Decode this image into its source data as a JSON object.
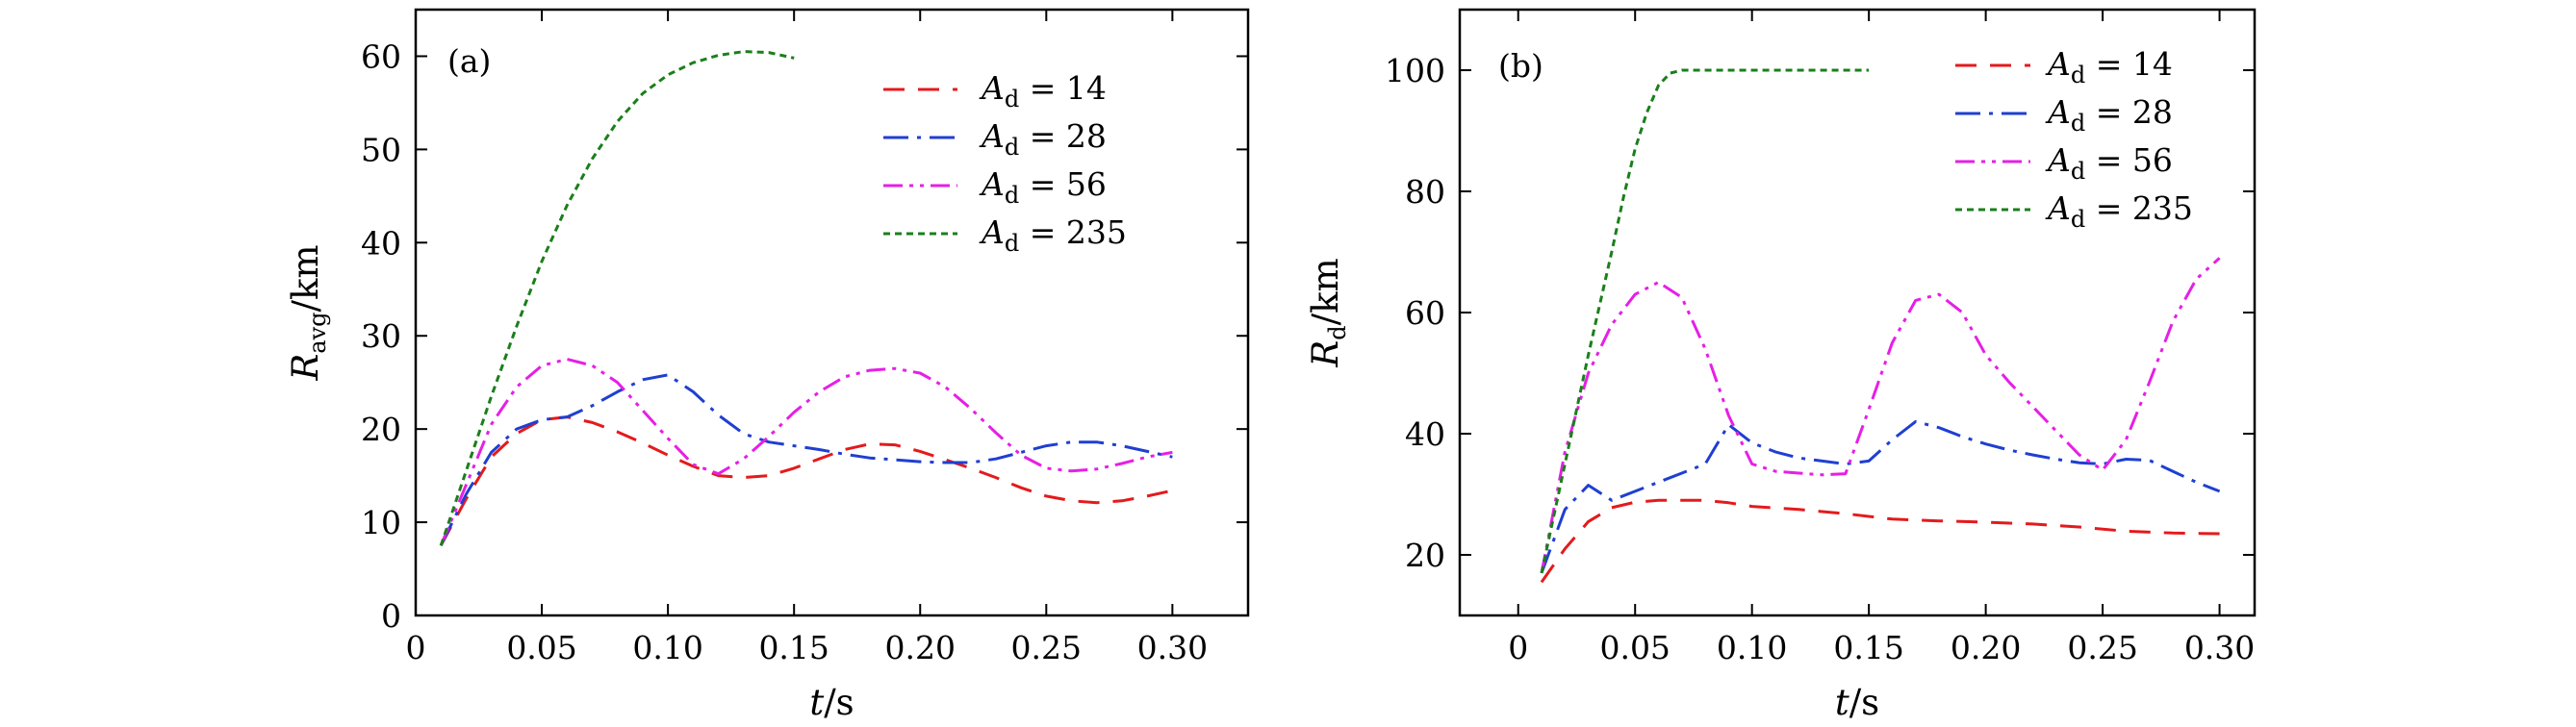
{
  "chart_data": [
    {
      "type": "line",
      "panel_label": "(a)",
      "xlabel": {
        "italic": "t",
        "rest": "/s"
      },
      "ylabel": {
        "main": "R",
        "sub": "avg",
        "rest": "/km"
      },
      "xlim": [
        0,
        0.33
      ],
      "ylim": [
        0,
        65
      ],
      "xticks": [
        0,
        0.05,
        0.1,
        0.15,
        0.2,
        0.25,
        0.3
      ],
      "xtick_labels": [
        "0",
        "0.05",
        "0.10",
        "0.15",
        "0.20",
        "0.25",
        "0.30"
      ],
      "yticks": [
        0,
        10,
        20,
        30,
        40,
        50,
        60
      ],
      "ytick_labels": [
        "0",
        "10",
        "20",
        "30",
        "40",
        "50",
        "60"
      ],
      "legend_position": "top-right",
      "series": [
        {
          "name": "14",
          "legend": {
            "main": "A",
            "sub": "d",
            "rest": " = 14"
          },
          "color": "#e41a1c",
          "dash": "22,14",
          "x": [
            0.01,
            0.02,
            0.03,
            0.04,
            0.05,
            0.06,
            0.07,
            0.08,
            0.09,
            0.1,
            0.11,
            0.12,
            0.13,
            0.14,
            0.15,
            0.16,
            0.17,
            0.18,
            0.19,
            0.2,
            0.21,
            0.22,
            0.23,
            0.24,
            0.25,
            0.26,
            0.27,
            0.28,
            0.29,
            0.3
          ],
          "y": [
            7.5,
            12.5,
            17,
            19.5,
            21,
            21.3,
            20.7,
            19.7,
            18.5,
            17.2,
            16,
            15,
            14.8,
            15,
            15.8,
            16.8,
            17.8,
            18.4,
            18.3,
            17.6,
            16.7,
            15.8,
            14.8,
            13.7,
            12.8,
            12.3,
            12.1,
            12.3,
            12.8,
            13.4
          ]
        },
        {
          "name": "28",
          "legend": {
            "main": "A",
            "sub": "d",
            "rest": " = 28"
          },
          "color": "#1f3fd1",
          "dash": "26,9,4,9",
          "x": [
            0.01,
            0.02,
            0.03,
            0.04,
            0.05,
            0.06,
            0.07,
            0.08,
            0.09,
            0.1,
            0.11,
            0.12,
            0.13,
            0.14,
            0.15,
            0.16,
            0.17,
            0.18,
            0.19,
            0.2,
            0.21,
            0.22,
            0.23,
            0.24,
            0.25,
            0.26,
            0.27,
            0.28,
            0.29,
            0.3
          ],
          "y": [
            7.5,
            13,
            17.5,
            20,
            21,
            21.3,
            22.5,
            24,
            25.3,
            25.8,
            24,
            21.5,
            19.5,
            18.6,
            18.2,
            17.8,
            17.3,
            16.9,
            16.7,
            16.5,
            16.4,
            16.4,
            16.8,
            17.5,
            18.2,
            18.6,
            18.6,
            18.2,
            17.6,
            17
          ]
        },
        {
          "name": "56",
          "legend": {
            "main": "A",
            "sub": "d",
            "rest": " = 56"
          },
          "color": "#e61fe6",
          "dash": "20,7,4,7,4,7",
          "x": [
            0.01,
            0.02,
            0.03,
            0.04,
            0.05,
            0.06,
            0.07,
            0.08,
            0.09,
            0.1,
            0.11,
            0.12,
            0.13,
            0.14,
            0.15,
            0.16,
            0.17,
            0.18,
            0.19,
            0.2,
            0.21,
            0.22,
            0.23,
            0.24,
            0.25,
            0.26,
            0.27,
            0.28,
            0.29,
            0.3
          ],
          "y": [
            7.5,
            14,
            20.5,
            24.5,
            26.8,
            27.5,
            26.8,
            25,
            22,
            19,
            16.2,
            15.2,
            16.8,
            19.2,
            21.8,
            24,
            25.6,
            26.3,
            26.5,
            26,
            24.5,
            22.2,
            19.6,
            17.2,
            15.8,
            15.5,
            15.7,
            16.3,
            17,
            17.5
          ]
        },
        {
          "name": "235",
          "legend": {
            "main": "A",
            "sub": "d",
            "rest": " = 235"
          },
          "color": "#1a7f1a",
          "dash": "7,5",
          "x": [
            0.01,
            0.02,
            0.03,
            0.04,
            0.05,
            0.06,
            0.07,
            0.08,
            0.09,
            0.1,
            0.11,
            0.12,
            0.13,
            0.14,
            0.15
          ],
          "y": [
            7.5,
            15.5,
            23.5,
            31,
            38,
            44,
            49,
            53,
            56,
            58,
            59.3,
            60.1,
            60.5,
            60.4,
            59.8
          ]
        }
      ]
    },
    {
      "type": "line",
      "panel_label": "(b)",
      "xlabel": {
        "italic": "t",
        "rest": "/s"
      },
      "ylabel": {
        "main": "R",
        "sub": "d",
        "rest": "/km"
      },
      "xlim": [
        -0.025,
        0.315
      ],
      "ylim": [
        10,
        110
      ],
      "xticks": [
        0,
        0.05,
        0.1,
        0.15,
        0.2,
        0.25,
        0.3
      ],
      "xtick_labels": [
        "0",
        "0.05",
        "0.10",
        "0.15",
        "0.20",
        "0.25",
        "0.30"
      ],
      "yticks": [
        20,
        40,
        60,
        80,
        100
      ],
      "ytick_labels": [
        "20",
        "40",
        "60",
        "80",
        "100"
      ],
      "legend_position": "top-right",
      "series": [
        {
          "name": "14",
          "legend": {
            "main": "A",
            "sub": "d",
            "rest": " = 14"
          },
          "color": "#e41a1c",
          "dash": "22,14",
          "x": [
            0.01,
            0.02,
            0.03,
            0.04,
            0.05,
            0.06,
            0.07,
            0.08,
            0.09,
            0.1,
            0.12,
            0.14,
            0.16,
            0.18,
            0.2,
            0.22,
            0.24,
            0.26,
            0.28,
            0.3
          ],
          "y": [
            15.5,
            21,
            25.5,
            27.8,
            28.7,
            29,
            29,
            29,
            28.6,
            28,
            27.5,
            26.8,
            25.9,
            25.6,
            25.4,
            25.1,
            24.6,
            23.9,
            23.6,
            23.5
          ]
        },
        {
          "name": "28",
          "legend": {
            "main": "A",
            "sub": "d",
            "rest": " = 28"
          },
          "color": "#1f3fd1",
          "dash": "26,9,4,9",
          "x": [
            0.01,
            0.02,
            0.03,
            0.04,
            0.05,
            0.06,
            0.07,
            0.08,
            0.09,
            0.1,
            0.11,
            0.12,
            0.13,
            0.14,
            0.15,
            0.16,
            0.17,
            0.18,
            0.19,
            0.2,
            0.21,
            0.22,
            0.23,
            0.24,
            0.25,
            0.26,
            0.27,
            0.28,
            0.29,
            0.3
          ],
          "y": [
            17,
            27.5,
            31.5,
            29,
            30.5,
            32,
            33.5,
            35,
            41.5,
            38.5,
            37,
            36,
            35.5,
            35,
            35.5,
            39,
            42,
            41,
            39.5,
            38.3,
            37.3,
            36.5,
            35.8,
            35.2,
            35,
            35.8,
            35.6,
            33.8,
            32,
            30.5
          ]
        },
        {
          "name": "56",
          "legend": {
            "main": "A",
            "sub": "d",
            "rest": " = 56"
          },
          "color": "#e61fe6",
          "dash": "20,7,4,7,4,7",
          "x": [
            0.01,
            0.02,
            0.03,
            0.04,
            0.05,
            0.06,
            0.07,
            0.08,
            0.09,
            0.1,
            0.11,
            0.12,
            0.13,
            0.14,
            0.15,
            0.16,
            0.17,
            0.18,
            0.19,
            0.2,
            0.21,
            0.22,
            0.23,
            0.24,
            0.25,
            0.26,
            0.27,
            0.28,
            0.29,
            0.3
          ],
          "y": [
            17,
            37,
            50,
            58,
            63,
            65,
            62.5,
            54,
            43,
            35,
            33.8,
            33.5,
            33.2,
            33.4,
            44,
            55,
            62,
            63,
            60,
            53,
            48.5,
            44.5,
            40.5,
            36.5,
            34,
            39,
            48.5,
            58.5,
            65.5,
            69
          ]
        },
        {
          "name": "235",
          "legend": {
            "main": "A",
            "sub": "d",
            "rest": " = 235"
          },
          "color": "#1a7f1a",
          "dash": "7,5",
          "x": [
            0.01,
            0.02,
            0.03,
            0.04,
            0.045,
            0.05,
            0.055,
            0.06,
            0.065,
            0.07,
            0.08,
            0.09,
            0.1,
            0.11,
            0.12,
            0.13,
            0.14,
            0.15
          ],
          "y": [
            17,
            35,
            53,
            70,
            79,
            87,
            93,
            97.5,
            99.5,
            100,
            100,
            100,
            100,
            100,
            100,
            100,
            100,
            100
          ]
        }
      ]
    }
  ]
}
